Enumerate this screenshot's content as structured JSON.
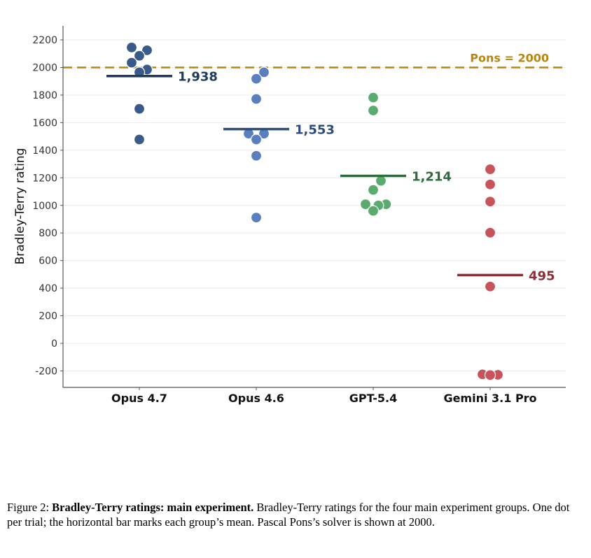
{
  "chart_data": {
    "type": "scatter",
    "title": "",
    "xlabel": "",
    "ylabel": "Bradley-Terry rating",
    "ylim": [
      -320,
      2300
    ],
    "yticks": [
      -200,
      0,
      200,
      400,
      600,
      800,
      1000,
      1200,
      1400,
      1600,
      1800,
      2000,
      2200
    ],
    "ytick_labels": [
      "-200",
      "0",
      "200",
      "400",
      "600",
      "800",
      "1000",
      "1200",
      "1400",
      "1600",
      "1800",
      "2000",
      "2200"
    ],
    "categories": [
      "Opus 4.7",
      "Opus 4.6",
      "GPT-5.4",
      "Gemini 3.1 Pro"
    ],
    "grid": true,
    "reference_line": {
      "value": 2000,
      "label": "Pons = 2000",
      "color": "#b8860b"
    },
    "groups": [
      {
        "name": "Opus 4.7",
        "color": "#3a5a8c",
        "mean_color": "#1f3a5f",
        "mean": 1938,
        "mean_label": "1,938",
        "points": [
          2145,
          2125,
          2085,
          2035,
          1985,
          1965,
          1700,
          1478
        ],
        "offsets": [
          -0.3,
          0.3,
          0,
          -0.3,
          0.3,
          0,
          0,
          0
        ]
      },
      {
        "name": "Opus 4.6",
        "color": "#5a7fbf",
        "mean_color": "#2b4c7e",
        "mean": 1553,
        "mean_label": "1,553",
        "points": [
          1965,
          1918,
          1772,
          1520,
          1520,
          1478,
          1360,
          912
        ],
        "offsets": [
          0.3,
          0,
          0,
          -0.3,
          0.3,
          0,
          0,
          0
        ]
      },
      {
        "name": "GPT-5.4",
        "color": "#5aab6e",
        "mean_color": "#2e6b3c",
        "mean": 1214,
        "mean_label": "1,214",
        "points": [
          1782,
          1688,
          1178,
          1112,
          1008,
          1008,
          1000,
          960
        ],
        "offsets": [
          0,
          0,
          0.3,
          0,
          -0.3,
          0.5,
          0.2,
          0
        ]
      },
      {
        "name": "Gemini 3.1 Pro",
        "color": "#c9535a",
        "mean_color": "#8b2e35",
        "mean": 495,
        "mean_label": "495",
        "points": [
          1262,
          1152,
          1028,
          802,
          412,
          -225,
          -228,
          -230
        ],
        "offsets": [
          0,
          0,
          0,
          0,
          0,
          -0.3,
          0.3,
          0
        ]
      }
    ]
  },
  "caption": {
    "prefix": "Figure 2: ",
    "bold": "Bradley-Terry ratings: main experiment.",
    "text": " Bradley-Terry ratings for the four main experiment groups. One dot per trial; the horizontal bar marks each group’s mean. Pascal Pons’s solver is shown at 2000."
  }
}
